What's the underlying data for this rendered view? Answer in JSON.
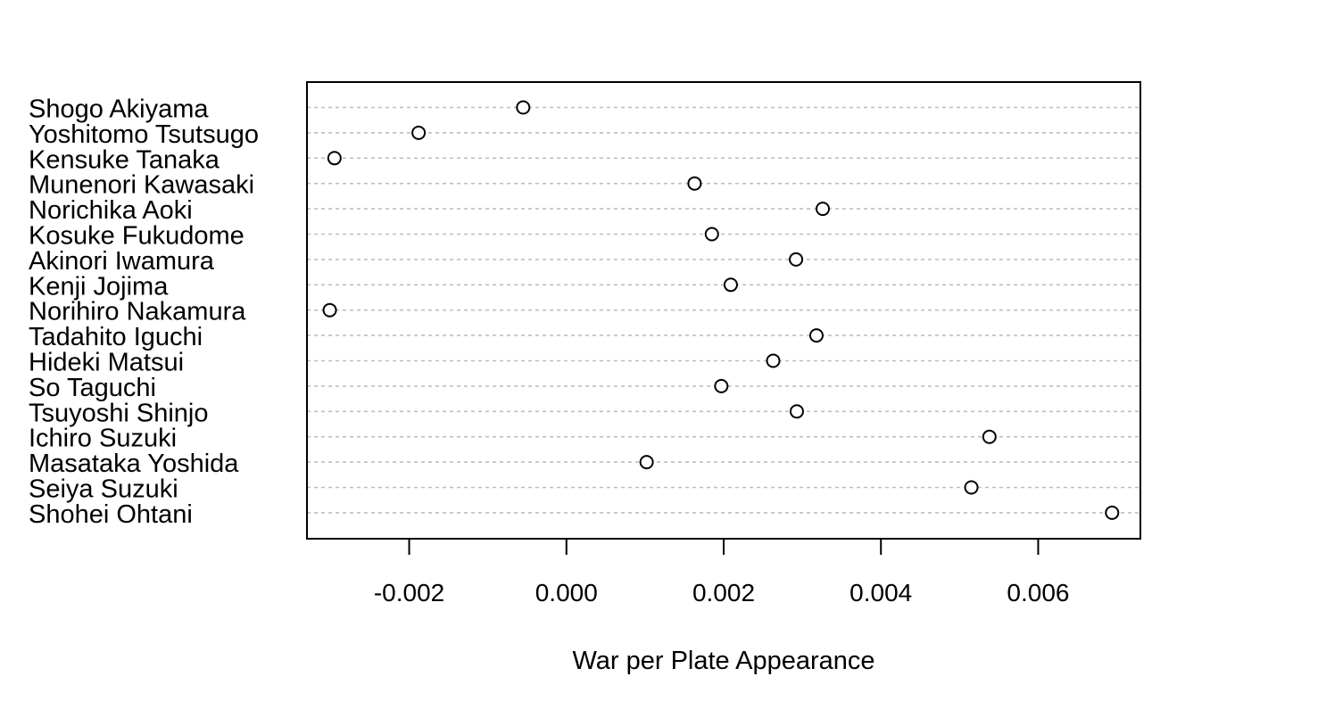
{
  "chart_data": {
    "type": "scatter",
    "variant": "dotchart",
    "title": "",
    "xlabel": "War per Plate Appearance",
    "ylabel": "",
    "xlim": [
      -0.0033,
      0.0073
    ],
    "x_ticks": [
      -0.002,
      0.0,
      0.002,
      0.004,
      0.006
    ],
    "x_tick_labels": [
      "-0.002",
      "0.000",
      "0.002",
      "0.004",
      "0.006"
    ],
    "grid": "horizontal dashed guide lines per row",
    "point_style": "open circle",
    "colors": {
      "point_stroke": "#000000",
      "point_fill": "#ffffff",
      "guide_line": "#bebebe",
      "frame": "#000000"
    },
    "categories": [
      "Shogo Akiyama",
      "Yoshitomo Tsutsugo",
      "Kensuke Tanaka",
      "Munenori Kawasaki",
      "Norichika Aoki",
      "Kosuke Fukudome",
      "Akinori Iwamura",
      "Kenji Jojima",
      "Norihiro Nakamura",
      "Tadahito Iguchi",
      "Hideki Matsui",
      "So Taguchi",
      "Tsuyoshi Shinjo",
      "Ichiro Suzuki",
      "Masataka Yoshida",
      "Seiya Suzuki",
      "Shohei Ohtani"
    ],
    "values": [
      -0.00055,
      -0.00188,
      -0.00295,
      0.00163,
      0.00326,
      0.00185,
      0.00292,
      0.00209,
      -0.00301,
      0.00318,
      0.00263,
      0.00197,
      0.00293,
      0.00538,
      0.00102,
      0.00515,
      0.00694
    ]
  }
}
